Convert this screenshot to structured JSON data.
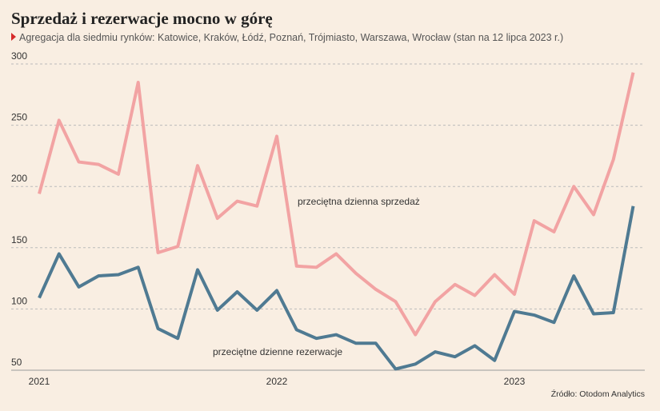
{
  "chart_data": {
    "type": "line",
    "title": "Sprzedaż i rezerwacje mocno w górę",
    "subtitle": "Agregacja dla siedmiu rynków: Katowice, Kraków, Łódź, Poznań, Trójmiasto, Warszawa, Wrocław (stan na 12 lipca 2023 r.)",
    "source": "Źródło: Otodom Analytics",
    "categories": [
      "2021",
      null,
      null,
      null,
      null,
      null,
      null,
      null,
      null,
      null,
      null,
      null,
      "2022",
      null,
      null,
      null,
      null,
      null,
      null,
      null,
      null,
      null,
      null,
      null,
      "2023",
      null,
      null,
      null,
      null,
      null,
      null
    ],
    "series": [
      {
        "name": "przeciętna dzienna sprzedaż",
        "color": "#f2a3a3",
        "values": [
          194,
          254,
          220,
          218,
          210,
          285,
          146,
          151,
          217,
          174,
          188,
          184,
          241,
          135,
          134,
          145,
          129,
          116,
          106,
          79,
          106,
          120,
          111,
          128,
          112,
          172,
          163,
          200,
          177,
          222,
          293
        ]
      },
      {
        "name": "przeciętne dzienne rezerwacje",
        "color": "#4f7a92",
        "values": [
          109,
          145,
          118,
          127,
          128,
          134,
          84,
          76,
          132,
          99,
          114,
          99,
          115,
          83,
          76,
          79,
          72,
          72,
          51,
          55,
          65,
          61,
          70,
          58,
          98,
          95,
          89,
          127,
          96,
          97,
          184
        ]
      }
    ],
    "ylim": [
      50,
      300
    ],
    "yticks": [
      50,
      100,
      150,
      200,
      250,
      300
    ],
    "grid": true
  }
}
